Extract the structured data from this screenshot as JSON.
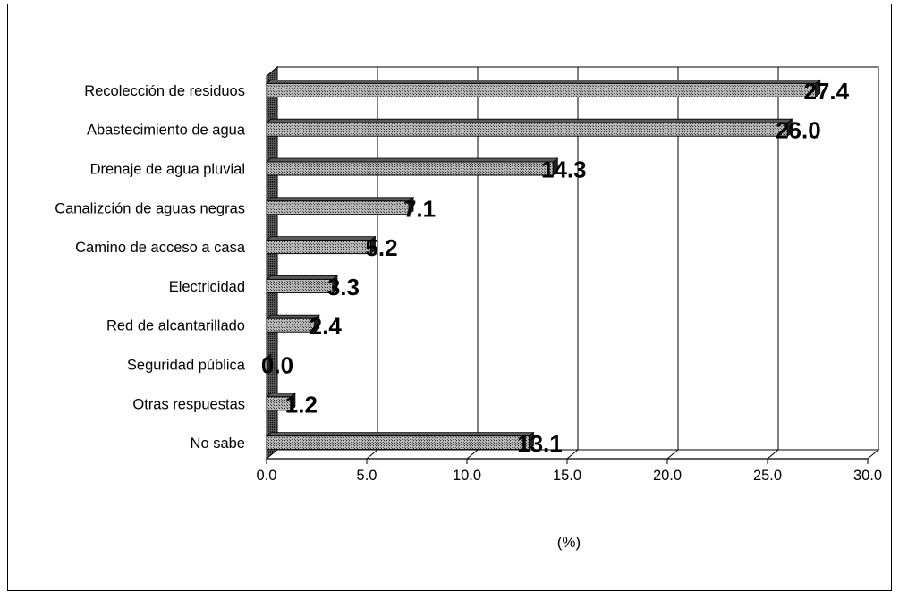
{
  "chart_data": {
    "type": "bar",
    "orientation": "horizontal",
    "categories": [
      "Recolección de residuos",
      "Abastecimiento de agua",
      "Drenaje de agua pluvial",
      "Canalizción de aguas negras",
      "Camino de acceso a casa",
      "Electricidad",
      "Red de alcantarillado",
      "Seguridad pública",
      "Otras respuestas",
      "No sabe"
    ],
    "values": [
      27.4,
      26.0,
      14.3,
      7.1,
      5.2,
      3.3,
      2.4,
      0.0,
      1.2,
      13.1
    ],
    "value_labels": [
      "27.4",
      "26.0",
      "14.3",
      "7.1",
      "5.2",
      "3.3",
      "2.4",
      "0.0",
      "1.2",
      "13.1"
    ],
    "x_ticks": [
      "0.0",
      "5.0",
      "10.0",
      "15.0",
      "20.0",
      "25.0",
      "30.0"
    ],
    "xlim": [
      0,
      30
    ],
    "xlabel": "(%)",
    "grid": "vertical",
    "bar_style": "3d-hatched",
    "colors": {
      "bar": "#8a8a8a",
      "bar_dark": "#3a3a3a",
      "grid": "#000000"
    }
  }
}
